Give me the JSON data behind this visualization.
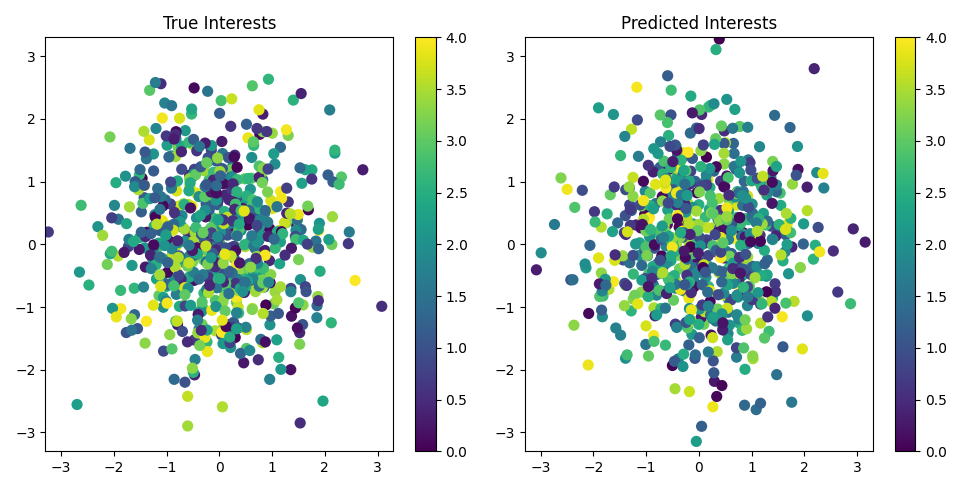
{
  "title_left": "True Interests",
  "title_right": "Predicted Interests",
  "cmap": "viridis",
  "clim": [
    0.0,
    4.0
  ],
  "xlim": [
    -3.3,
    3.3
  ],
  "ylim": [
    -3.3,
    3.3
  ],
  "xticks": [
    -3,
    -2,
    -1,
    0,
    1,
    2,
    3
  ],
  "yticks": [
    -3,
    -2,
    -1,
    0,
    1,
    2,
    3
  ],
  "n_points": 700,
  "marker_size": 65,
  "seed1": 42,
  "seed2": 99,
  "alpha": 1.0,
  "figsize": [
    9.75,
    4.9
  ],
  "dpi": 100,
  "background_color": "white",
  "colorbar_ticks": [
    0.0,
    0.5,
    1.0,
    1.5,
    2.0,
    2.5,
    3.0,
    3.5,
    4.0
  ]
}
